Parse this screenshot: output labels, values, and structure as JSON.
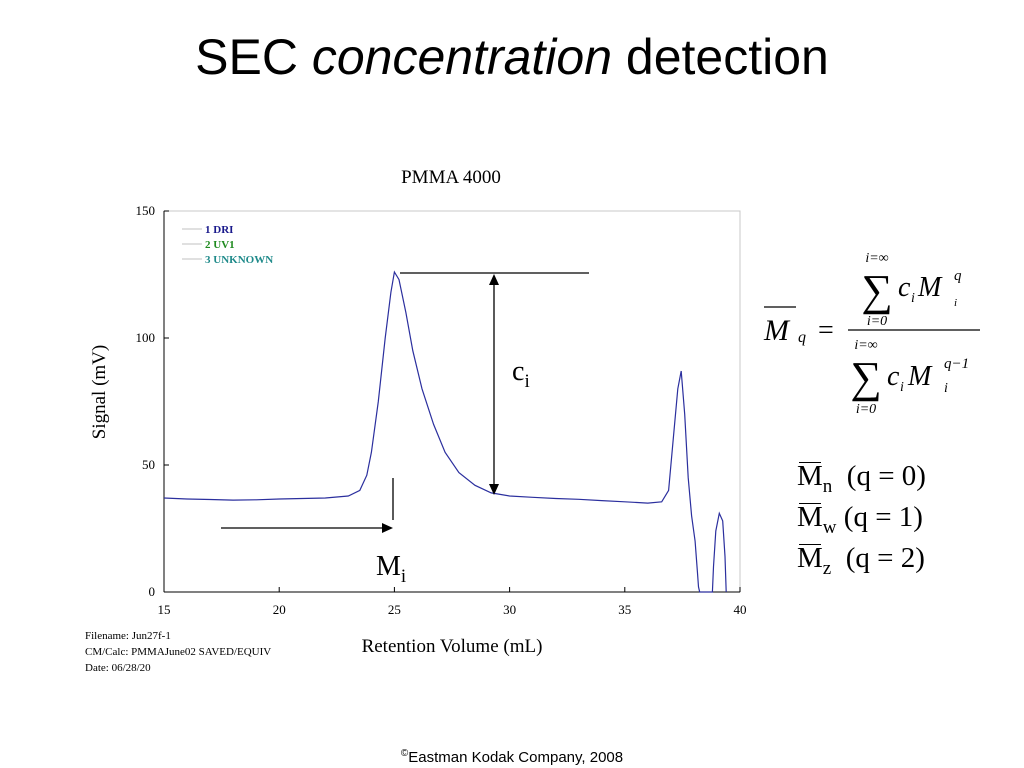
{
  "slide": {
    "title_part1": "SEC ",
    "title_part2": "concentration",
    "title_part3": " detection",
    "copyright_symbol": "©",
    "copyright_text": "Eastman Kodak Company, 2008"
  },
  "info": {
    "filename": "Filename: Jun27f-1",
    "cmcalc": "CM/Calc: PMMAJune02 SAVED/EQUIV",
    "date": "Date: 06/28/20"
  },
  "annotations": {
    "ci_main": "c",
    "ci_sub": "i",
    "mi_main": "M",
    "mi_sub": "i"
  },
  "equation": {
    "lhs_main": "M",
    "lhs_sub": "q",
    "equals": "=",
    "sum_sign": "∑",
    "upper_limit": "i=∞",
    "lower_limit": "i=0",
    "num_c": "c",
    "num_c_sub": "i",
    "num_m": "M",
    "num_m_sup": "q",
    "num_m_sub": "i",
    "den_c": "c",
    "den_c_sub": "i",
    "den_m": "M",
    "den_m_sup": "q−1",
    "den_m_sub": "i"
  },
  "averages": [
    {
      "m": "M",
      "sub": "n",
      "cond": "(q = 0)"
    },
    {
      "m": "M",
      "sub": "w",
      "cond": "(q = 1)"
    },
    {
      "m": "M",
      "sub": "z",
      "cond": "(q = 2)"
    }
  ],
  "colors": {
    "trace": "#2b2f9e",
    "legend_dri": "#1a1a8c",
    "legend_uv1": "#1f8a1f",
    "legend_unknown": "#1f8a8a",
    "frame": "#c8c8c8"
  },
  "chart_data": {
    "type": "line",
    "title": "PMMA 4000",
    "xlabel": "Retention Volume (mL)",
    "ylabel": "Signal (mV)",
    "xlim": [
      15,
      40
    ],
    "ylim": [
      0,
      150
    ],
    "xticks": [
      "15",
      "20",
      "25",
      "30",
      "35",
      "40"
    ],
    "yticks": [
      "0",
      "50",
      "100",
      "150"
    ],
    "legend": [
      "1 DRI",
      "2 UV1",
      "3 UNKNOWN"
    ],
    "legend_position": "top-left",
    "grid": false,
    "series": [
      {
        "name": "1 DRI",
        "x": [
          15.0,
          16.0,
          17.0,
          18.0,
          19.0,
          20.0,
          21.0,
          22.0,
          23.0,
          23.5,
          23.8,
          24.0,
          24.3,
          24.6,
          24.85,
          25.0,
          25.2,
          25.5,
          25.8,
          26.2,
          26.7,
          27.2,
          27.8,
          28.5,
          29.2,
          30.0,
          31.0,
          32.0,
          33.0,
          34.0,
          35.0,
          36.0,
          36.6,
          36.9,
          37.1,
          37.3,
          37.45,
          37.6,
          37.75,
          37.9,
          38.05,
          38.15,
          38.2,
          38.25,
          38.8,
          38.85,
          38.95,
          39.1,
          39.25,
          39.35,
          39.4
        ],
        "y": [
          37.0,
          36.6,
          36.4,
          36.2,
          36.3,
          36.6,
          36.8,
          37.0,
          37.8,
          40.0,
          46.0,
          55.0,
          75.0,
          100.0,
          118.0,
          126.0,
          123.0,
          110.0,
          95.0,
          80.0,
          66.0,
          55.0,
          47.0,
          42.0,
          39.0,
          37.8,
          37.3,
          36.8,
          36.5,
          36.0,
          35.5,
          35.0,
          35.5,
          40.0,
          60.0,
          80.0,
          87.0,
          70.0,
          45.0,
          30.0,
          20.0,
          8.0,
          2.0,
          0.0,
          0.0,
          10.0,
          24.0,
          31.0,
          28.0,
          14.0,
          0.0
        ]
      }
    ]
  }
}
